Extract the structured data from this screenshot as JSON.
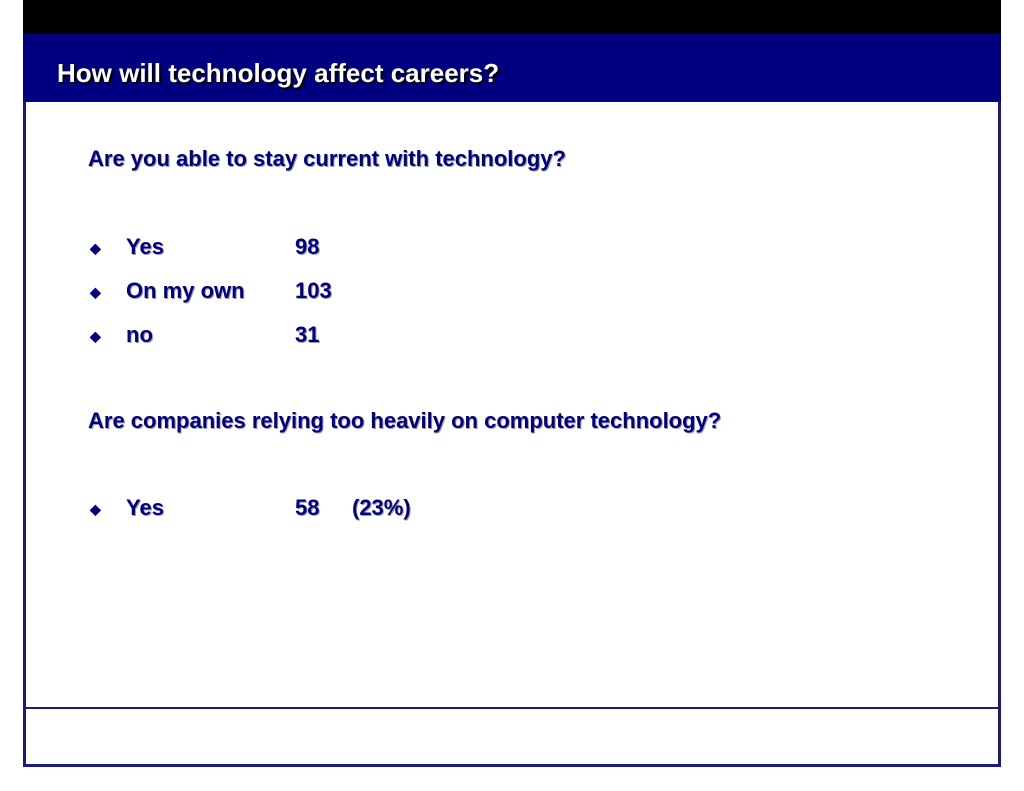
{
  "slide": {
    "title": "How will technology affect careers?",
    "sections": [
      {
        "question": "Are you able to stay current with technology?",
        "items": [
          {
            "label": "Yes",
            "value": "98"
          },
          {
            "label": "On my own",
            "value": "103"
          },
          {
            "label": "no",
            "value": "31"
          }
        ]
      },
      {
        "question": "Are companies relying too heavily on computer technology?",
        "items": [
          {
            "label": "Yes",
            "value": "58",
            "percent": "(23%)"
          }
        ]
      }
    ],
    "bullet_icon": "diamond-icon",
    "colors": {
      "title_bar": "#000080",
      "text": "#000080",
      "frame": "#1a1a80",
      "top_band": "#000000"
    }
  }
}
